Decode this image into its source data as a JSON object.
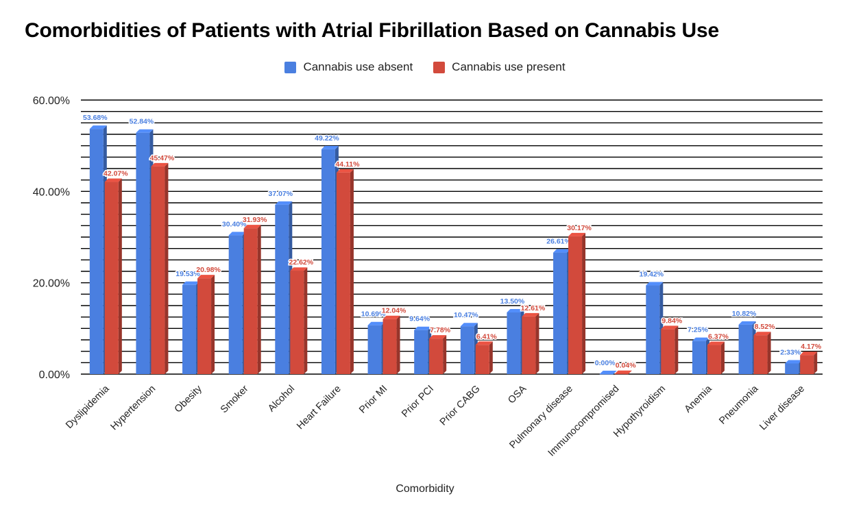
{
  "chart_data": {
    "type": "bar",
    "title": "Comorbidities of Patients with Atrial Fibrillation Based on Cannabis Use",
    "xlabel": "Comorbidity",
    "ylabel": "",
    "ylim": [
      0,
      60
    ],
    "y_ticks": [
      "0.00%",
      "20.00%",
      "40.00%",
      "60.00%"
    ],
    "y_tick_values": [
      0,
      20,
      40,
      60
    ],
    "legend_position": "top-center",
    "categories": [
      "Dyslipidemia",
      "Hypertension",
      "Obesity",
      "Smoker",
      "Alcohol",
      "Heart Failure",
      "Prior MI",
      "Prior PCI",
      "Prior CABG",
      "OSA",
      "Pulmonary disease",
      "Immunocompromised",
      "Hypothyroidism",
      "Anemia",
      "Pneumonia",
      "Liver disease"
    ],
    "series": [
      {
        "name": "Cannabis use absent",
        "color": "#4a7fe0",
        "values": [
          53.68,
          52.84,
          19.53,
          30.4,
          37.07,
          49.22,
          10.69,
          9.64,
          10.47,
          13.5,
          26.61,
          0.0,
          19.42,
          7.25,
          10.82,
          2.33
        ],
        "labels": [
          "53.68%",
          "52.84%",
          "19.53%",
          "30.40%",
          "37.07%",
          "49.22%",
          "10.69%",
          "9.64%",
          "10.47%",
          "13.50%",
          "26.61%",
          "0.00%",
          "19.42%",
          "7.25%",
          "10.82%",
          "2.33%"
        ]
      },
      {
        "name": "Cannabis use present",
        "color": "#d24a3c",
        "values": [
          42.07,
          45.47,
          20.98,
          31.93,
          22.62,
          44.11,
          12.04,
          7.78,
          6.41,
          12.61,
          30.17,
          0.04,
          9.84,
          6.37,
          8.52,
          4.17
        ],
        "labels": [
          "42.07%",
          "45.47%",
          "20.98%",
          "31.93%",
          "22.62%",
          "44.11%",
          "12.04%",
          "7.78%",
          "6.41%",
          "12.61%",
          "30.17%",
          "0.04%",
          "9.84%",
          "6.37%",
          "8.52%",
          "4.17%"
        ]
      }
    ]
  }
}
